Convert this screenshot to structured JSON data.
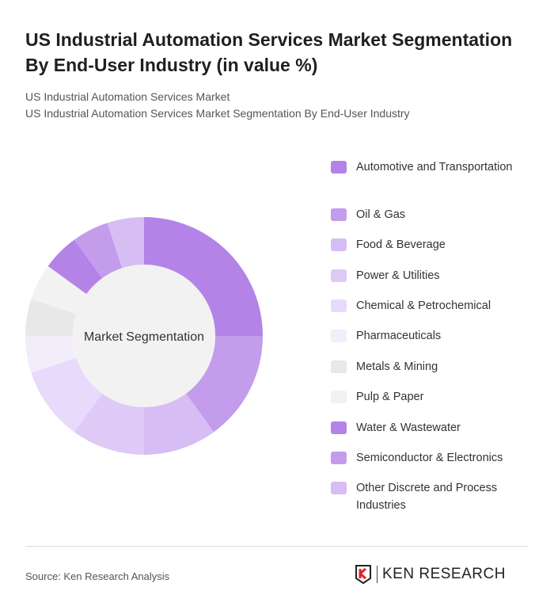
{
  "title": "US Industrial Automation Services Market Segmentation By End-User Industry (in value %)",
  "subtitle1": "US Industrial Automation Services Market",
  "subtitle2": "US Industrial Automation Services Market Segmentation By End-User Industry",
  "source": "Source: Ken Research Analysis",
  "logo_text": "KEN RESEARCH",
  "chart_data": {
    "type": "pie",
    "donut": true,
    "center_label": "Market Segmentation",
    "legend_position": "right",
    "categories": [
      "Automotive and Transportation",
      "Oil & Gas",
      "Food & Beverage",
      "Power & Utilities",
      "Chemical & Petrochemical",
      "Pharmaceuticals",
      "Metals & Mining",
      "Pulp & Paper",
      "Water & Wastewater",
      "Semiconductor & Electronics",
      "Other Discrete and Process Industries"
    ],
    "values": [
      25,
      15,
      10,
      10,
      10,
      5,
      5,
      5,
      5,
      5,
      5
    ],
    "colors": [
      "#b383e8",
      "#c39ceb",
      "#d6bdf3",
      "#dfc9f6",
      "#e8dafa",
      "#f2ecfb",
      "#e8e8e8",
      "#f2f2f2",
      "#b383e8",
      "#c39ceb",
      "#d6bdf3"
    ]
  }
}
